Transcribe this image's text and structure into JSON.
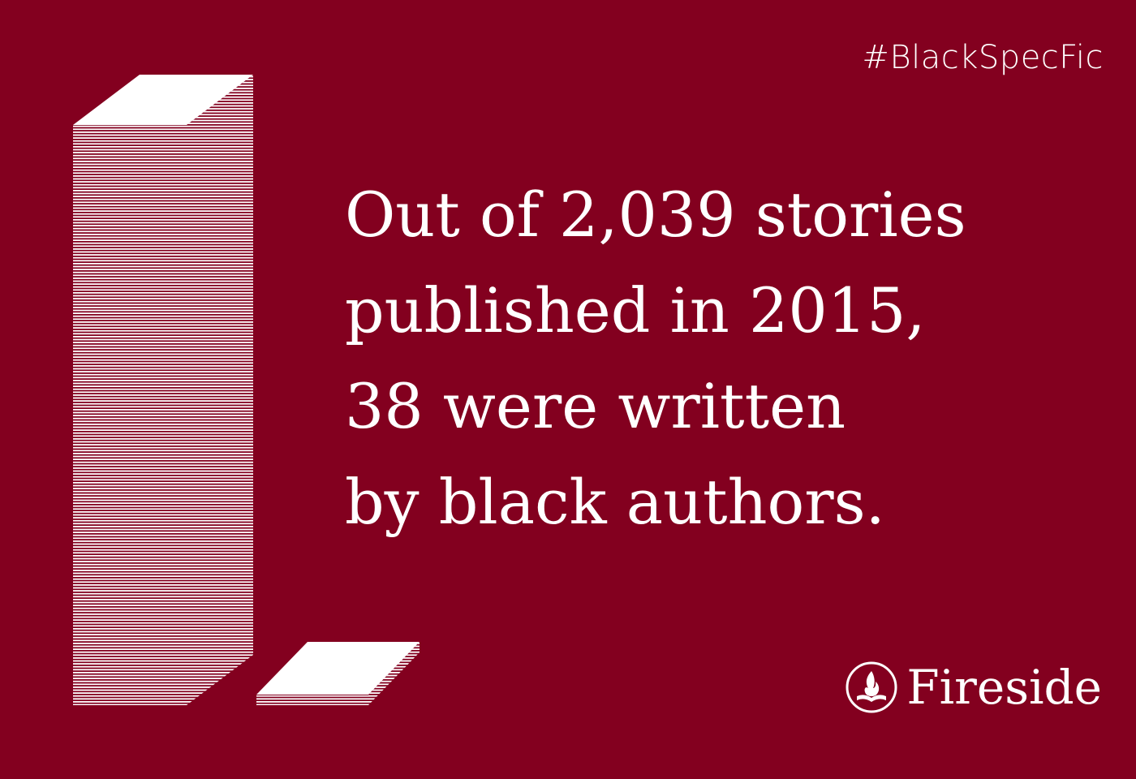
{
  "background_color": "#83001f",
  "foreground_color": "#ffffff",
  "hashtag": "#BlackSpecFic",
  "headline": {
    "lines": [
      "Out of 2,039 stories",
      "published in 2015,",
      "38 were written",
      "by black authors."
    ]
  },
  "brand": {
    "name": "Fireside",
    "icon": "flame-book-logo"
  },
  "chart_data": {
    "type": "bar",
    "style": "isometric stacks of pages",
    "categories": [
      "",
      ""
    ],
    "values": [
      2039,
      38
    ],
    "title": "",
    "xlabel": "",
    "ylabel": "",
    "grid": false,
    "legend": "none"
  }
}
